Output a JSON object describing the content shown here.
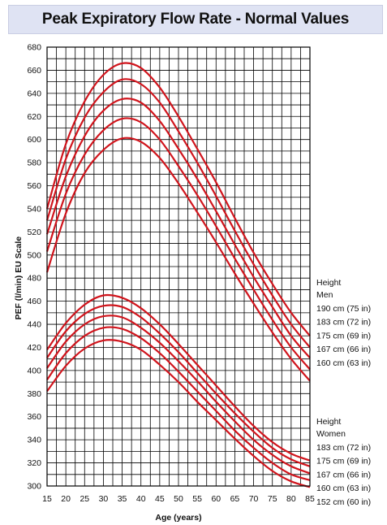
{
  "chart_data": {
    "type": "line",
    "title": "Peak Expiratory Flow Rate - Normal Values",
    "xlabel": "Age (years)",
    "ylabel": "PEF (l/min) EU Scale",
    "xlim": [
      15,
      85
    ],
    "ylim": [
      300,
      680
    ],
    "x_ticks": [
      15,
      20,
      25,
      30,
      35,
      40,
      45,
      50,
      55,
      60,
      65,
      70,
      75,
      80,
      85
    ],
    "y_ticks": [
      300,
      320,
      340,
      360,
      380,
      400,
      420,
      440,
      460,
      480,
      500,
      520,
      540,
      560,
      580,
      600,
      620,
      640,
      660,
      680
    ],
    "grid": true,
    "line_color": "#d0141c",
    "legend_groups": [
      {
        "heading": "Height",
        "group": "Men",
        "entries": [
          "190 cm (75 in)",
          "183 cm (72 in)",
          "175 cm (69 in)",
          "167 cm (66 in)",
          "160 cm (63 in)"
        ]
      },
      {
        "heading": "Height",
        "group": "Women",
        "entries": [
          "183 cm (72 in)",
          "175 cm (69 in)",
          "167 cm (66 in)",
          "160 cm (63 in)",
          "152 cm (60 in)"
        ]
      }
    ],
    "series": [
      {
        "name": "Men 190 cm (75 in)",
        "x": [
          15,
          20,
          25,
          30,
          35,
          40,
          45,
          50,
          55,
          60,
          65,
          70,
          75,
          80,
          85
        ],
        "y": [
          540,
          596,
          633,
          656,
          666,
          662,
          645,
          620,
          592,
          563,
          532,
          502,
          475,
          450,
          430
        ]
      },
      {
        "name": "Men 183 cm (72 in)",
        "x": [
          15,
          20,
          25,
          30,
          35,
          40,
          45,
          50,
          55,
          60,
          65,
          70,
          75,
          80,
          85
        ],
        "y": [
          530,
          583,
          619,
          641,
          652,
          648,
          632,
          607,
          580,
          551,
          521,
          492,
          465,
          440,
          420
        ]
      },
      {
        "name": "Men 175 cm (69 in)",
        "x": [
          15,
          20,
          25,
          30,
          35,
          40,
          45,
          50,
          55,
          60,
          65,
          70,
          75,
          80,
          85
        ],
        "y": [
          518,
          568,
          603,
          625,
          635,
          632,
          616,
          592,
          566,
          538,
          509,
          481,
          455,
          430,
          411
        ]
      },
      {
        "name": "Men 167 cm (66 in)",
        "x": [
          15,
          20,
          25,
          30,
          35,
          40,
          45,
          50,
          55,
          60,
          65,
          70,
          75,
          80,
          85
        ],
        "y": [
          503,
          553,
          587,
          608,
          618,
          615,
          600,
          577,
          552,
          525,
          497,
          470,
          444,
          420,
          401
        ]
      },
      {
        "name": "Men 160 cm (63 in)",
        "x": [
          15,
          20,
          25,
          30,
          35,
          40,
          45,
          50,
          55,
          60,
          65,
          70,
          75,
          80,
          85
        ],
        "y": [
          485,
          536,
          571,
          591,
          601,
          598,
          584,
          562,
          537,
          511,
          484,
          458,
          433,
          410,
          391
        ]
      },
      {
        "name": "Women 183 cm (72 in)",
        "x": [
          15,
          20,
          25,
          30,
          35,
          40,
          45,
          50,
          55,
          60,
          65,
          70,
          75,
          80,
          85
        ],
        "y": [
          418,
          441,
          457,
          465,
          463,
          454,
          440,
          423,
          405,
          387,
          369,
          352,
          338,
          328,
          322
        ]
      },
      {
        "name": "Women 175 cm (69 in)",
        "x": [
          15,
          20,
          25,
          30,
          35,
          40,
          45,
          50,
          55,
          60,
          65,
          70,
          75,
          80,
          85
        ],
        "y": [
          411,
          434,
          449,
          456,
          455,
          446,
          432,
          416,
          398,
          380,
          363,
          347,
          333,
          323,
          317
        ]
      },
      {
        "name": "Women 167 cm (66 in)",
        "x": [
          15,
          20,
          25,
          30,
          35,
          40,
          45,
          50,
          55,
          60,
          65,
          70,
          75,
          80,
          85
        ],
        "y": [
          402,
          425,
          440,
          447,
          446,
          437,
          424,
          408,
          391,
          373,
          356,
          340,
          327,
          317,
          311
        ]
      },
      {
        "name": "Women 160 cm (63 in)",
        "x": [
          15,
          20,
          25,
          30,
          35,
          40,
          45,
          50,
          55,
          60,
          65,
          70,
          75,
          80,
          85
        ],
        "y": [
          392,
          415,
          430,
          437,
          436,
          428,
          415,
          399,
          382,
          365,
          348,
          333,
          320,
          310,
          305
        ]
      },
      {
        "name": "Women 152 cm (60 in)",
        "x": [
          15,
          20,
          25,
          30,
          35,
          40,
          45,
          50,
          55,
          60,
          65,
          70,
          75,
          80,
          85
        ],
        "y": [
          382,
          404,
          419,
          426,
          425,
          418,
          405,
          390,
          373,
          357,
          341,
          326,
          313,
          304,
          299
        ]
      }
    ]
  }
}
